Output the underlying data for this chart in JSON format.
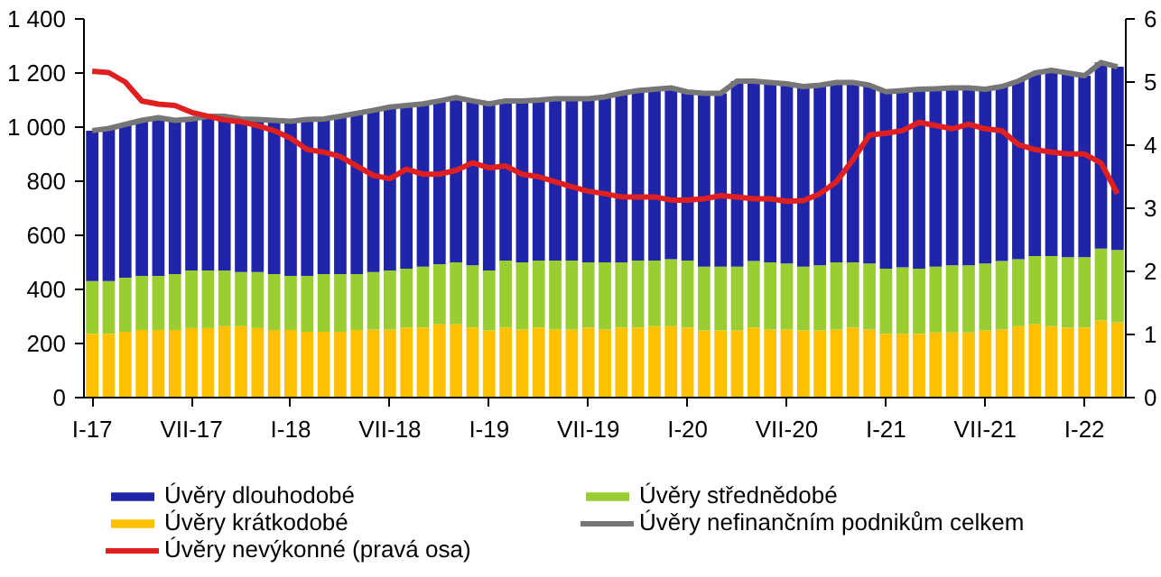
{
  "chart_data": {
    "type": "bar",
    "stacked": true,
    "categories": [
      "I-17",
      null,
      null,
      null,
      null,
      null,
      "VII-17",
      null,
      null,
      null,
      null,
      null,
      "I-18",
      null,
      null,
      null,
      null,
      null,
      "VII-18",
      null,
      null,
      null,
      null,
      null,
      "I-19",
      null,
      null,
      null,
      null,
      null,
      "VII-19",
      null,
      null,
      null,
      null,
      null,
      "I-20",
      null,
      null,
      null,
      null,
      null,
      "VII-20",
      null,
      null,
      null,
      null,
      null,
      "I-21",
      null,
      null,
      null,
      null,
      null,
      "VII-21",
      null,
      null,
      null,
      null,
      null,
      "I-22",
      null,
      null
    ],
    "series": [
      {
        "name": "Úvěry krátkodobé",
        "color": "#ffc000",
        "values": [
          236,
          236,
          243,
          250,
          250,
          250,
          257,
          257,
          264,
          264,
          257,
          250,
          250,
          243,
          243,
          243,
          250,
          252,
          252,
          259,
          259,
          271,
          271,
          259,
          248,
          259,
          252,
          259,
          252,
          252,
          259,
          252,
          259,
          259,
          264,
          264,
          259,
          248,
          248,
          248,
          259,
          252,
          252,
          248,
          248,
          252,
          259,
          252,
          236,
          236,
          236,
          241,
          241,
          241,
          248,
          252,
          264,
          271,
          264,
          259,
          259,
          285,
          278
        ]
      },
      {
        "name": "Úvěry střednědobé",
        "color": "#9acd32",
        "values": [
          195,
          195,
          200,
          200,
          200,
          207,
          213,
          213,
          206,
          200,
          207,
          207,
          200,
          207,
          214,
          214,
          207,
          212,
          218,
          218,
          225,
          222,
          229,
          230,
          222,
          248,
          248,
          248,
          255,
          255,
          241,
          248,
          241,
          248,
          243,
          248,
          248,
          236,
          236,
          236,
          246,
          248,
          244,
          236,
          241,
          248,
          241,
          244,
          241,
          246,
          241,
          243,
          248,
          248,
          248,
          253,
          248,
          252,
          259,
          260,
          260,
          266,
          268
        ]
      },
      {
        "name": "Úvěry dlouhodobé",
        "color": "#1f24a8",
        "values": [
          556,
          564,
          567,
          575,
          585,
          568,
          560,
          570,
          570,
          566,
          564,
          568,
          572,
          578,
          573,
          583,
          594,
          598,
          604,
          603,
          602,
          604,
          609,
          608,
          616,
          590,
          597,
          593,
          598,
          598,
          605,
          612,
          625,
          628,
          633,
          633,
          623,
          641,
          641,
          686,
          665,
          665,
          664,
          666,
          666,
          665,
          665,
          659,
          654,
          653,
          663,
          658,
          656,
          656,
          644,
          645,
          658,
          677,
          687,
          681,
          671,
          688,
          677
        ]
      },
      {
        "name": "Úvěry nefinančním podnikům celkem",
        "type": "line",
        "color": "#767676",
        "values": [
          987,
          995,
          1010,
          1025,
          1035,
          1025,
          1030,
          1040,
          1040,
          1030,
          1028,
          1025,
          1022,
          1028,
          1030,
          1040,
          1051,
          1062,
          1074,
          1080,
          1086,
          1097,
          1109,
          1097,
          1086,
          1097,
          1097,
          1100,
          1105,
          1105,
          1105,
          1112,
          1125,
          1135,
          1140,
          1145,
          1130,
          1125,
          1125,
          1170,
          1170,
          1165,
          1160,
          1150,
          1155,
          1165,
          1165,
          1155,
          1131,
          1135,
          1140,
          1142,
          1145,
          1145,
          1140,
          1150,
          1170,
          1200,
          1210,
          1200,
          1190,
          1239,
          1223
        ]
      },
      {
        "name": "Úvěry nevýkonné (pravá osa)",
        "type": "line",
        "axis": "y2",
        "color": "#e02020",
        "values": [
          5.17,
          5.15,
          5.0,
          4.7,
          4.65,
          4.63,
          4.52,
          4.46,
          4.4,
          4.37,
          4.31,
          4.23,
          4.11,
          3.93,
          3.89,
          3.82,
          3.67,
          3.52,
          3.47,
          3.62,
          3.54,
          3.54,
          3.6,
          3.72,
          3.64,
          3.67,
          3.54,
          3.5,
          3.42,
          3.34,
          3.27,
          3.23,
          3.18,
          3.18,
          3.18,
          3.13,
          3.13,
          3.15,
          3.2,
          3.18,
          3.15,
          3.15,
          3.11,
          3.12,
          3.23,
          3.42,
          3.77,
          4.16,
          4.19,
          4.23,
          4.36,
          4.31,
          4.26,
          4.33,
          4.26,
          4.23,
          4.01,
          3.93,
          3.89,
          3.86,
          3.86,
          3.72,
          3.23
        ]
      }
    ],
    "ylim": [
      0,
      1400
    ],
    "yticks": [
      0,
      200,
      400,
      600,
      800,
      {
        "value": 1000,
        "label": "1 000"
      },
      {
        "value": 1200,
        "label": "1 200"
      },
      {
        "value": 1400,
        "label": "1 400"
      }
    ],
    "y2lim": [
      0,
      6
    ],
    "y2ticks": [
      0,
      1,
      2,
      3,
      4,
      5,
      6
    ],
    "grid": false,
    "legend": "bottom"
  }
}
